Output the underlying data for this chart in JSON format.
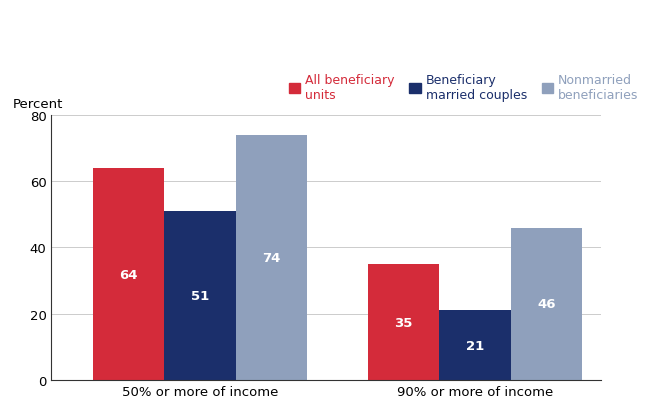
{
  "groups": [
    "50% or more of income",
    "90% or more of income"
  ],
  "series": [
    {
      "label": "All beneficiary\nunits",
      "color": "#d42b3a",
      "values": [
        64,
        35
      ]
    },
    {
      "label": "Beneficiary\nmarried couples",
      "color": "#1b2f6b",
      "values": [
        51,
        21
      ]
    },
    {
      "label": "Nonmarried\nbeneficiaries",
      "color": "#8fa0bc",
      "values": [
        74,
        46
      ]
    }
  ],
  "ylabel": "Percent",
  "ylim": [
    0,
    80
  ],
  "yticks": [
    0,
    20,
    40,
    60,
    80
  ],
  "bar_width": 0.13,
  "group_centers": [
    0.22,
    0.72
  ],
  "xlim": [
    -0.05,
    0.95
  ],
  "label_fontsize": 9.5,
  "tick_fontsize": 9.5,
  "legend_fontsize": 9,
  "value_label_color": "white",
  "value_label_fontsize": 9.5
}
